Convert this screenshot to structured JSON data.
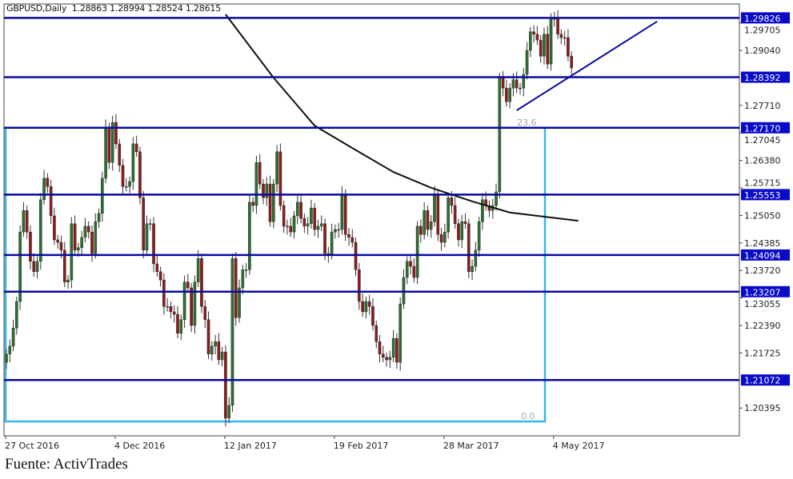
{
  "header": {
    "symbol": "GBPUSD,Daily",
    "open": "1.28863",
    "high": "1.28994",
    "low": "1.28524",
    "close": "1.28615"
  },
  "source": "Fuente: ActivTrades",
  "colors": {
    "bull": "#2f6e2f",
    "bear": "#8a1c1c",
    "wick": "#333333",
    "level_line": "#0a0aa0",
    "level_label_bg": "#0a0ac8",
    "fib": "#33b8ee",
    "ma": "#111111",
    "trendline": "#0a0aa0"
  },
  "chart_data": {
    "type": "candlestick",
    "title": "GBPUSD,Daily",
    "ylim": [
      1.1986,
      1.3025
    ],
    "y_ticks": [
      "1.29705",
      "1.29040",
      "1.27710",
      "1.27045",
      "1.26380",
      "1.25715",
      "1.25050",
      "1.24385",
      "1.23720",
      "1.23055",
      "1.22390",
      "1.21725",
      "1.20395"
    ],
    "x_ticks": [
      {
        "index": 0,
        "label": "27 Oct 2016"
      },
      {
        "index": 32,
        "label": "4 Dec 2016"
      },
      {
        "index": 64,
        "label": "12 Jan 2017"
      },
      {
        "index": 96,
        "label": "19 Feb 2017"
      },
      {
        "index": 128,
        "label": "28 Mar 2017"
      },
      {
        "index": 160,
        "label": "4 May 2017"
      }
    ],
    "first_open": 1.215,
    "close": [
      1.217,
      1.2189,
      1.2233,
      1.2297,
      1.2465,
      1.2517,
      1.2465,
      1.2394,
      1.2369,
      1.2394,
      1.2543,
      1.2595,
      1.2575,
      1.2504,
      1.2446,
      1.244,
      1.2421,
      1.2344,
      1.2349,
      1.2485,
      1.2421,
      1.2427,
      1.2452,
      1.2479,
      1.2465,
      1.2413,
      1.249,
      1.251,
      1.2595,
      1.2717,
      1.2633,
      1.273,
      1.2678,
      1.2626,
      1.2575,
      1.2575,
      1.2587,
      1.2678,
      1.2659,
      1.2548,
      1.2421,
      1.2485,
      1.2485,
      1.2388,
      1.2369,
      1.2349,
      1.2285,
      1.2285,
      1.2272,
      1.2266,
      1.222,
      1.2253,
      1.2344,
      1.233,
      1.2239,
      1.2344,
      1.2401,
      1.2285,
      1.2253,
      1.217,
      1.2189,
      1.22,
      1.2156,
      1.2175,
      1.2015,
      1.2046,
      1.2401,
      1.2258,
      1.233,
      1.2374,
      1.2374,
      1.2537,
      1.2529,
      1.2633,
      1.2581,
      1.2548,
      1.2581,
      1.249,
      1.2581,
      1.2659,
      1.2529,
      1.2479,
      1.2479,
      1.2465,
      1.2504,
      1.2537,
      1.2498,
      1.2479,
      1.2485,
      1.2523,
      1.2471,
      1.2479,
      1.2485,
      1.2413,
      1.2411,
      1.2465,
      1.2471,
      1.2471,
      1.2556,
      1.2459,
      1.2452,
      1.244,
      1.2374,
      1.2297,
      1.2272,
      1.2297,
      1.2285,
      1.2239,
      1.22,
      1.217,
      1.2162,
      1.2156,
      1.2162,
      1.2208,
      1.215,
      1.2291,
      1.2355,
      1.2394,
      1.2382,
      1.2355,
      1.2479,
      1.2459,
      1.2517,
      1.2471,
      1.249,
      1.2556,
      1.2459,
      1.244,
      1.2465,
      1.2548,
      1.2529,
      1.2485,
      1.2446,
      1.249,
      1.2485,
      1.2369,
      1.2382,
      1.2421,
      1.249,
      1.2543,
      1.2529,
      1.2517,
      1.2529,
      1.2562,
      1.2838,
      1.2813,
      1.278,
      1.2813,
      1.2833,
      1.2813,
      1.2813,
      1.2846,
      1.2904,
      1.2949,
      1.2943,
      1.2929,
      1.289,
      1.2943,
      1.2871,
      1.2981,
      1.2981,
      1.2943,
      1.2935,
      1.2935,
      1.289,
      1.28615
    ],
    "levels": [
      "1.29826",
      "1.28392",
      "1.27170",
      "1.25553",
      "1.24094",
      "1.23207",
      "1.21072"
    ],
    "moving_average": [
      [
        64,
        1.2991
      ],
      [
        78,
        1.2838
      ],
      [
        90,
        1.2722
      ],
      [
        101,
        1.2668
      ],
      [
        113,
        1.261
      ],
      [
        124,
        1.2572
      ],
      [
        136,
        1.2539
      ],
      [
        147,
        1.2512
      ],
      [
        167,
        1.2492
      ]
    ],
    "fibonacci": {
      "from_index": 0,
      "to_index": 157,
      "levels": [
        {
          "label": "23.6",
          "price": 1.2717
        },
        {
          "label": "0.0",
          "price": 1.2007
        }
      ]
    },
    "trendline": [
      [
        149,
        1.2759
      ],
      [
        190,
        1.2974
      ]
    ]
  }
}
